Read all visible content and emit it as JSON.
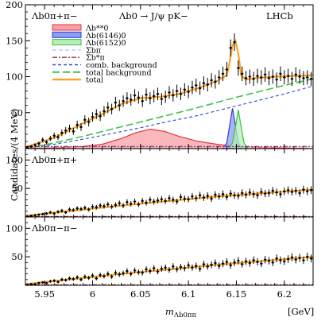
{
  "figure": {
    "ylabel": "Candidates/(4 MeV)",
    "xlabel": "m",
    "xlabel_sub": "Λb0ππ",
    "xunit": "[GeV]",
    "experiment": "LHCb",
    "decay": "Λb0 → J/ψ pK−",
    "panels": [
      "Λb0π+π−",
      "Λb0π+π+",
      "Λb0π−π−"
    ],
    "top_yticks": [
      "50",
      "100",
      "150",
      "200"
    ],
    "sub_yticks": [
      "50",
      "100"
    ],
    "xticks": [
      "5.95",
      "6",
      "6.05",
      "6.1",
      "6.15",
      "6.2"
    ]
  },
  "legend": [
    {
      "label": "Λb**0",
      "kind": "fill",
      "color": "#e8303a",
      "fill": "#f7a0a6"
    },
    {
      "label": "Λb(6146)0",
      "kind": "fill",
      "color": "#2b3fd4",
      "fill": "#8f9cf2"
    },
    {
      "label": "Λb(6152)0",
      "kind": "fill",
      "color": "#3cc24a",
      "fill": "#b4efb4"
    },
    {
      "label": "Σbπ",
      "kind": "line",
      "color": "#b7c2ff",
      "dash": "5,3"
    },
    {
      "label": "Σb*π",
      "kind": "line",
      "color": "#9b3050",
      "dash": "6,2,2,2"
    },
    {
      "label": "comb. background",
      "kind": "line",
      "color": "#2a4ad6",
      "dash": "4,3"
    },
    {
      "label": "total background",
      "kind": "line",
      "color": "#3cc24a",
      "dash": "9,4"
    },
    {
      "label": "total",
      "kind": "line",
      "color": "#ffa11e",
      "dash": ""
    }
  ],
  "chart_data": [
    {
      "type": "scatter",
      "title": "Λb0π+π−",
      "xlabel": "m(Λb0ππ) [GeV]",
      "ylabel": "Candidates/(4 MeV)",
      "xlim": [
        5.93,
        6.23
      ],
      "ylim": [
        0,
        200
      ],
      "x": [
        5.932,
        5.936,
        5.94,
        5.944,
        5.948,
        5.952,
        5.956,
        5.96,
        5.964,
        5.968,
        5.972,
        5.976,
        5.98,
        5.984,
        5.988,
        5.992,
        5.996,
        6.0,
        6.004,
        6.008,
        6.012,
        6.016,
        6.02,
        6.024,
        6.028,
        6.032,
        6.036,
        6.04,
        6.044,
        6.048,
        6.052,
        6.056,
        6.06,
        6.064,
        6.068,
        6.072,
        6.076,
        6.08,
        6.084,
        6.088,
        6.092,
        6.096,
        6.1,
        6.104,
        6.108,
        6.112,
        6.116,
        6.12,
        6.124,
        6.128,
        6.132,
        6.136,
        6.14,
        6.144,
        6.148,
        6.152,
        6.156,
        6.16,
        6.164,
        6.168,
        6.172,
        6.176,
        6.18,
        6.184,
        6.188,
        6.192,
        6.196,
        6.2,
        6.204,
        6.208,
        6.212,
        6.216,
        6.22,
        6.224,
        6.228
      ],
      "y": [
        2,
        3,
        5,
        7,
        12,
        9,
        14,
        18,
        16,
        22,
        25,
        28,
        24,
        33,
        30,
        40,
        37,
        44,
        48,
        45,
        52,
        57,
        55,
        64,
        60,
        66,
        70,
        68,
        74,
        71,
        66,
        75,
        70,
        73,
        76,
        69,
        72,
        78,
        74,
        80,
        76,
        82,
        79,
        85,
        88,
        84,
        91,
        89,
        95,
        93,
        99,
        104,
        110,
        140,
        148,
        112,
        104,
        98,
        100,
        97,
        101,
        99,
        103,
        98,
        100,
        96,
        104,
        99,
        101,
        97,
        103,
        100,
        98,
        99,
        97
      ],
      "series": [
        {
          "name": "total",
          "x": [
            5.93,
            5.96,
            5.99,
            6.01,
            6.03,
            6.05,
            6.07,
            6.09,
            6.11,
            6.13,
            6.14,
            6.143,
            6.146,
            6.149,
            6.152,
            6.155,
            6.16,
            6.17,
            6.19,
            6.21,
            6.23
          ],
          "y": [
            2,
            15,
            35,
            48,
            62,
            70,
            72,
            76,
            84,
            94,
            102,
            120,
            144,
            150,
            132,
            102,
            96,
            98,
            100,
            101,
            102
          ]
        },
        {
          "name": "total background",
          "x": [
            5.93,
            5.96,
            5.99,
            6.02,
            6.05,
            6.08,
            6.11,
            6.14,
            6.17,
            6.2,
            6.23
          ],
          "y": [
            0,
            8,
            17,
            27,
            37,
            47,
            57,
            68,
            78,
            88,
            97
          ]
        },
        {
          "name": "comb. background",
          "x": [
            5.93,
            5.96,
            5.99,
            6.02,
            6.05,
            6.08,
            6.11,
            6.14,
            6.17,
            6.2,
            6.23
          ],
          "y": [
            0,
            6,
            13,
            21,
            29,
            38,
            46,
            56,
            66,
            76,
            87
          ]
        },
        {
          "name": "Λb**0",
          "x": [
            5.93,
            5.96,
            5.99,
            6.01,
            6.03,
            6.045,
            6.06,
            6.075,
            6.09,
            6.11,
            6.13,
            6.15,
            6.17,
            6.2,
            6.23
          ],
          "y": [
            0,
            1,
            3,
            6,
            14,
            22,
            27,
            24,
            17,
            10,
            6,
            3,
            2,
            1,
            0
          ]
        },
        {
          "name": "Λb(6146)0",
          "x": [
            6.136,
            6.14,
            6.143,
            6.146,
            6.149,
            6.152,
            6.156
          ],
          "y": [
            0,
            8,
            32,
            56,
            32,
            8,
            0
          ]
        },
        {
          "name": "Λb(6152)0",
          "x": [
            6.142,
            6.146,
            6.149,
            6.152,
            6.155,
            6.158,
            6.162
          ],
          "y": [
            0,
            8,
            30,
            54,
            30,
            8,
            0
          ]
        },
        {
          "name": "Σbπ",
          "x": [
            5.93,
            6.23
          ],
          "y": [
            2,
            2
          ]
        },
        {
          "name": "Σb*π",
          "x": [
            5.93,
            6.23
          ],
          "y": [
            3,
            3
          ]
        }
      ]
    },
    {
      "type": "scatter",
      "title": "Λb0π+π+",
      "xlim": [
        5.93,
        6.23
      ],
      "ylim": [
        0,
        120
      ],
      "x": [
        5.932,
        5.936,
        5.94,
        5.944,
        5.948,
        5.952,
        5.956,
        5.96,
        5.964,
        5.968,
        5.972,
        5.976,
        5.98,
        5.984,
        5.988,
        5.992,
        5.996,
        6.0,
        6.004,
        6.008,
        6.012,
        6.016,
        6.02,
        6.024,
        6.028,
        6.032,
        6.036,
        6.04,
        6.044,
        6.048,
        6.052,
        6.056,
        6.06,
        6.064,
        6.068,
        6.072,
        6.076,
        6.08,
        6.084,
        6.088,
        6.092,
        6.096,
        6.1,
        6.104,
        6.108,
        6.112,
        6.116,
        6.12,
        6.124,
        6.128,
        6.132,
        6.136,
        6.14,
        6.144,
        6.148,
        6.152,
        6.156,
        6.16,
        6.164,
        6.168,
        6.172,
        6.176,
        6.18,
        6.184,
        6.188,
        6.192,
        6.196,
        6.2,
        6.204,
        6.208,
        6.212,
        6.216,
        6.22,
        6.224,
        6.228
      ],
      "y": [
        1,
        2,
        3,
        4,
        5,
        6,
        8,
        6,
        9,
        11,
        8,
        13,
        12,
        15,
        14,
        16,
        13,
        18,
        17,
        20,
        19,
        22,
        18,
        21,
        24,
        20,
        26,
        23,
        27,
        22,
        28,
        25,
        30,
        27,
        29,
        31,
        28,
        33,
        30,
        27,
        35,
        32,
        31,
        36,
        33,
        38,
        34,
        37,
        32,
        39,
        36,
        40,
        35,
        41,
        38,
        37,
        42,
        39,
        43,
        40,
        38,
        44,
        41,
        42,
        46,
        43,
        40,
        45,
        47,
        44,
        46,
        42,
        48,
        45,
        47
      ],
      "series": [
        {
          "name": "total",
          "x": [
            5.93,
            5.98,
            6.03,
            6.08,
            6.13,
            6.18,
            6.23
          ],
          "y": [
            2,
            11,
            20,
            28,
            36,
            42,
            48
          ]
        },
        {
          "name": "Σb*π",
          "x": [
            5.93,
            6.23
          ],
          "y": [
            1,
            1
          ]
        }
      ]
    },
    {
      "type": "scatter",
      "title": "Λb0π−π−",
      "xlim": [
        5.93,
        6.23
      ],
      "ylim": [
        0,
        120
      ],
      "x": [
        5.932,
        5.936,
        5.94,
        5.944,
        5.948,
        5.952,
        5.956,
        5.96,
        5.964,
        5.968,
        5.972,
        5.976,
        5.98,
        5.984,
        5.988,
        5.992,
        5.996,
        6.0,
        6.004,
        6.008,
        6.012,
        6.016,
        6.02,
        6.024,
        6.028,
        6.032,
        6.036,
        6.04,
        6.044,
        6.048,
        6.052,
        6.056,
        6.06,
        6.064,
        6.068,
        6.072,
        6.076,
        6.08,
        6.084,
        6.088,
        6.092,
        6.096,
        6.1,
        6.104,
        6.108,
        6.112,
        6.116,
        6.12,
        6.124,
        6.128,
        6.132,
        6.136,
        6.14,
        6.144,
        6.148,
        6.152,
        6.156,
        6.16,
        6.164,
        6.168,
        6.172,
        6.176,
        6.18,
        6.184,
        6.188,
        6.192,
        6.196,
        6.2,
        6.204,
        6.208,
        6.212,
        6.216,
        6.22,
        6.224,
        6.228
      ],
      "y": [
        1,
        2,
        2,
        4,
        5,
        4,
        7,
        8,
        6,
        10,
        9,
        12,
        11,
        14,
        10,
        15,
        13,
        17,
        12,
        18,
        16,
        20,
        15,
        22,
        19,
        21,
        25,
        20,
        26,
        23,
        22,
        28,
        25,
        30,
        24,
        29,
        31,
        27,
        33,
        28,
        32,
        30,
        35,
        31,
        34,
        29,
        37,
        33,
        36,
        39,
        34,
        38,
        41,
        35,
        40,
        43,
        37,
        42,
        39,
        44,
        41,
        38,
        45,
        43,
        40,
        47,
        44,
        42,
        46,
        49,
        45,
        48,
        44,
        50,
        47
      ],
      "series": [
        {
          "name": "total",
          "x": [
            5.93,
            5.98,
            6.03,
            6.08,
            6.13,
            6.18,
            6.23
          ],
          "y": [
            2,
            11,
            20,
            28,
            36,
            43,
            50
          ]
        },
        {
          "name": "Σb*π",
          "x": [
            5.93,
            6.23
          ],
          "y": [
            1,
            1
          ]
        }
      ]
    }
  ]
}
